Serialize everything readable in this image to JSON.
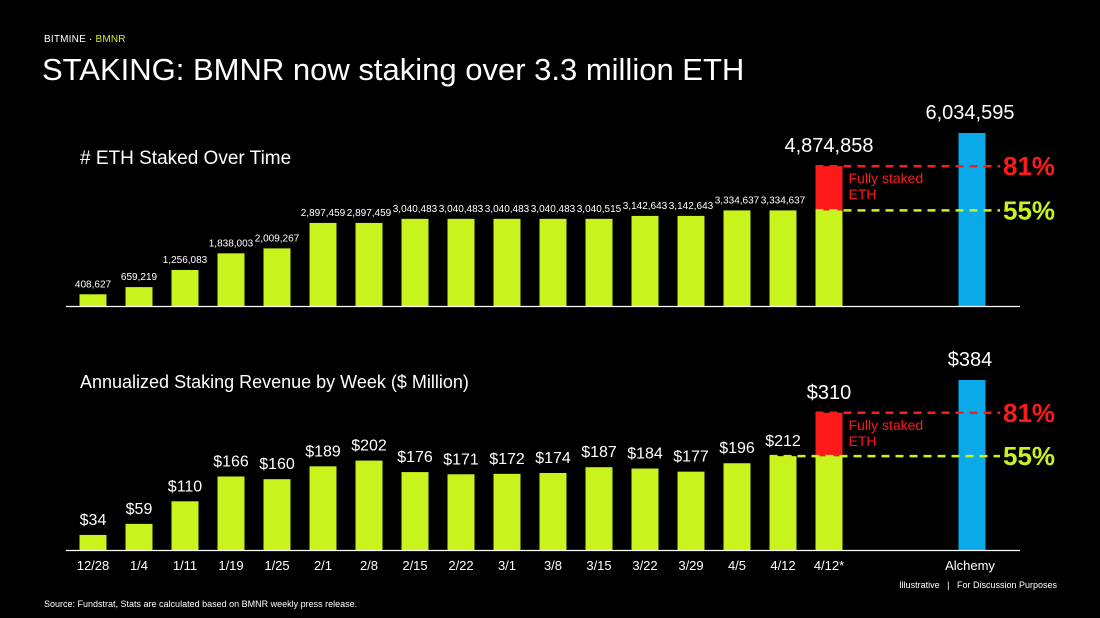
{
  "header": {
    "brand": "BITMINE",
    "brand_sep": " · ",
    "ticker": "BMNR",
    "title": "STAKING: BMNR now staking over 3.3 million ETH"
  },
  "footer": {
    "note": "Illustrative   |   For Discussion Purposes",
    "source": "Source: Fundstrat, Stats are calculated based on BMNR weekly press release."
  },
  "colors": {
    "bar": "#c8f31d",
    "fully_staked": "#ff1a1a",
    "alchemy": "#0aa9ea",
    "pct55": "#c8f31d",
    "pct81": "#ff1a1a"
  },
  "chart_data": [
    {
      "type": "bar",
      "title": "# ETH Staked Over Time",
      "categories": [
        "12/28",
        "1/4",
        "1/11",
        "1/19",
        "1/25",
        "2/1",
        "2/8",
        "2/15",
        "2/22",
        "3/1",
        "3/8",
        "3/15",
        "3/22",
        "3/29",
        "4/5",
        "4/12",
        "4/12*"
      ],
      "values": [
        408627,
        659219,
        1256083,
        1838003,
        2009267,
        2897459,
        2897459,
        3040483,
        3040483,
        3040483,
        3040483,
        3040515,
        3142643,
        3142643,
        3334637,
        3334637,
        3334637
      ],
      "labels": [
        "408,627",
        "659,219",
        "1,256,083",
        "1,838,003",
        "2,009,267",
        "2,897,459",
        "2,897,459",
        "3,040,483",
        "3,040,483",
        "3,040,483",
        "3,040,483",
        "3,040,515",
        "3,142,643",
        "3,142,643",
        "3,334,637",
        "3,334,637",
        ""
      ],
      "fully_staked": {
        "value": 4874858,
        "label": "4,874,858",
        "text_line1": "Fully staked",
        "text_line2": "ETH"
      },
      "reference": {
        "name": "Alchemy",
        "value": 6034595,
        "label": "6,034,595"
      },
      "pct_lines": {
        "high": "81%",
        "low": "55%"
      },
      "ylim": [
        0,
        6034595
      ]
    },
    {
      "type": "bar",
      "title": "Annualized Staking Revenue by Week ($ Million)",
      "categories": [
        "12/28",
        "1/4",
        "1/11",
        "1/19",
        "1/25",
        "2/1",
        "2/8",
        "2/15",
        "2/22",
        "3/1",
        "3/8",
        "3/15",
        "3/22",
        "3/29",
        "4/5",
        "4/12",
        "4/12*"
      ],
      "values": [
        34,
        59,
        110,
        166,
        160,
        189,
        202,
        176,
        171,
        172,
        174,
        187,
        184,
        177,
        196,
        212,
        212
      ],
      "labels": [
        "$34",
        "$59",
        "$110",
        "$166",
        "$160",
        "$189",
        "$202",
        "$176",
        "$171",
        "$172",
        "$174",
        "$187",
        "$184",
        "$177",
        "$196",
        "$212",
        ""
      ],
      "fully_staked": {
        "value": 310,
        "label": "$310",
        "text_line1": "Fully staked",
        "text_line2": "ETH"
      },
      "reference": {
        "name": "Alchemy",
        "value": 384,
        "label": "$384"
      },
      "pct_lines": {
        "high": "81%",
        "low": "55%"
      },
      "ylim": [
        0,
        384
      ]
    }
  ]
}
